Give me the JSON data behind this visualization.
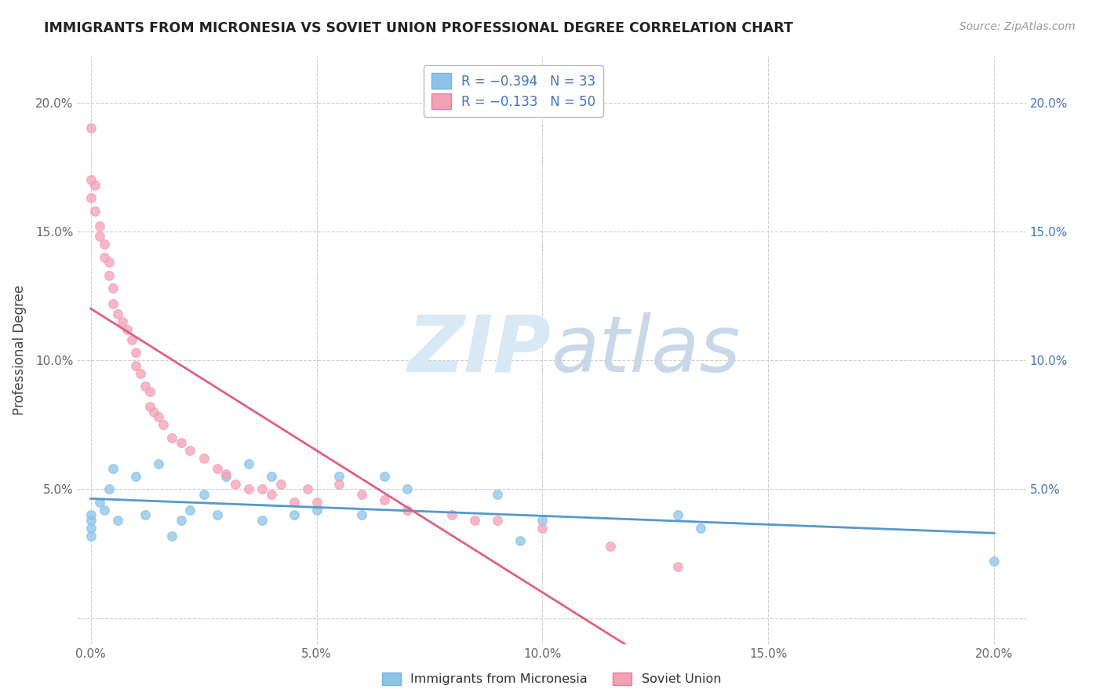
{
  "title": "IMMIGRANTS FROM MICRONESIA VS SOVIET UNION PROFESSIONAL DEGREE CORRELATION CHART",
  "source": "Source: ZipAtlas.com",
  "ylabel": "Professional Degree",
  "micronesia_color": "#8CC4E8",
  "soviet_color": "#F4A0B5",
  "micronesia_line_color": "#5599CC",
  "soviet_line_color": "#E06080",
  "micronesia_line_dashed_color": "#AACCEE",
  "watermark_color": "#D8E8F5",
  "mic_x": [
    0.0,
    0.0,
    0.0,
    0.0,
    0.002,
    0.003,
    0.004,
    0.005,
    0.006,
    0.01,
    0.012,
    0.015,
    0.018,
    0.02,
    0.022,
    0.025,
    0.028,
    0.03,
    0.035,
    0.038,
    0.04,
    0.045,
    0.05,
    0.055,
    0.06,
    0.065,
    0.07,
    0.09,
    0.095,
    0.1,
    0.13,
    0.135,
    0.2
  ],
  "mic_y": [
    0.04,
    0.038,
    0.035,
    0.032,
    0.045,
    0.042,
    0.05,
    0.058,
    0.038,
    0.055,
    0.04,
    0.06,
    0.032,
    0.038,
    0.042,
    0.048,
    0.04,
    0.055,
    0.06,
    0.038,
    0.055,
    0.04,
    0.042,
    0.055,
    0.04,
    0.055,
    0.05,
    0.048,
    0.03,
    0.038,
    0.04,
    0.035,
    0.022
  ],
  "sov_x": [
    0.0,
    0.0,
    0.0,
    0.001,
    0.001,
    0.002,
    0.002,
    0.003,
    0.003,
    0.004,
    0.004,
    0.005,
    0.005,
    0.006,
    0.007,
    0.008,
    0.009,
    0.01,
    0.01,
    0.011,
    0.012,
    0.013,
    0.013,
    0.014,
    0.015,
    0.016,
    0.018,
    0.02,
    0.022,
    0.025,
    0.028,
    0.03,
    0.032,
    0.035,
    0.038,
    0.04,
    0.042,
    0.045,
    0.048,
    0.05,
    0.055,
    0.06,
    0.065,
    0.07,
    0.08,
    0.085,
    0.09,
    0.1,
    0.115,
    0.13
  ],
  "sov_y": [
    0.19,
    0.17,
    0.163,
    0.168,
    0.158,
    0.152,
    0.148,
    0.145,
    0.14,
    0.138,
    0.133,
    0.128,
    0.122,
    0.118,
    0.115,
    0.112,
    0.108,
    0.098,
    0.103,
    0.095,
    0.09,
    0.088,
    0.082,
    0.08,
    0.078,
    0.075,
    0.07,
    0.068,
    0.065,
    0.062,
    0.058,
    0.056,
    0.052,
    0.05,
    0.05,
    0.048,
    0.052,
    0.045,
    0.05,
    0.045,
    0.052,
    0.048,
    0.046,
    0.042,
    0.04,
    0.038,
    0.038,
    0.035,
    0.028,
    0.02
  ],
  "xlim": [
    -0.003,
    0.207
  ],
  "ylim": [
    -0.01,
    0.218
  ],
  "xtick_vals": [
    0.0,
    0.05,
    0.1,
    0.15,
    0.2
  ],
  "ytick_vals": [
    0.0,
    0.05,
    0.1,
    0.15,
    0.2
  ],
  "xticklabels": [
    "0.0%",
    "5.0%",
    "10.0%",
    "15.0%",
    "20.0%"
  ],
  "yticklabels": [
    "",
    "5.0%",
    "10.0%",
    "15.0%",
    "20.0%"
  ],
  "right_yticklabels": [
    "",
    "5.0%",
    "10.0%",
    "15.0%",
    "20.0%"
  ]
}
